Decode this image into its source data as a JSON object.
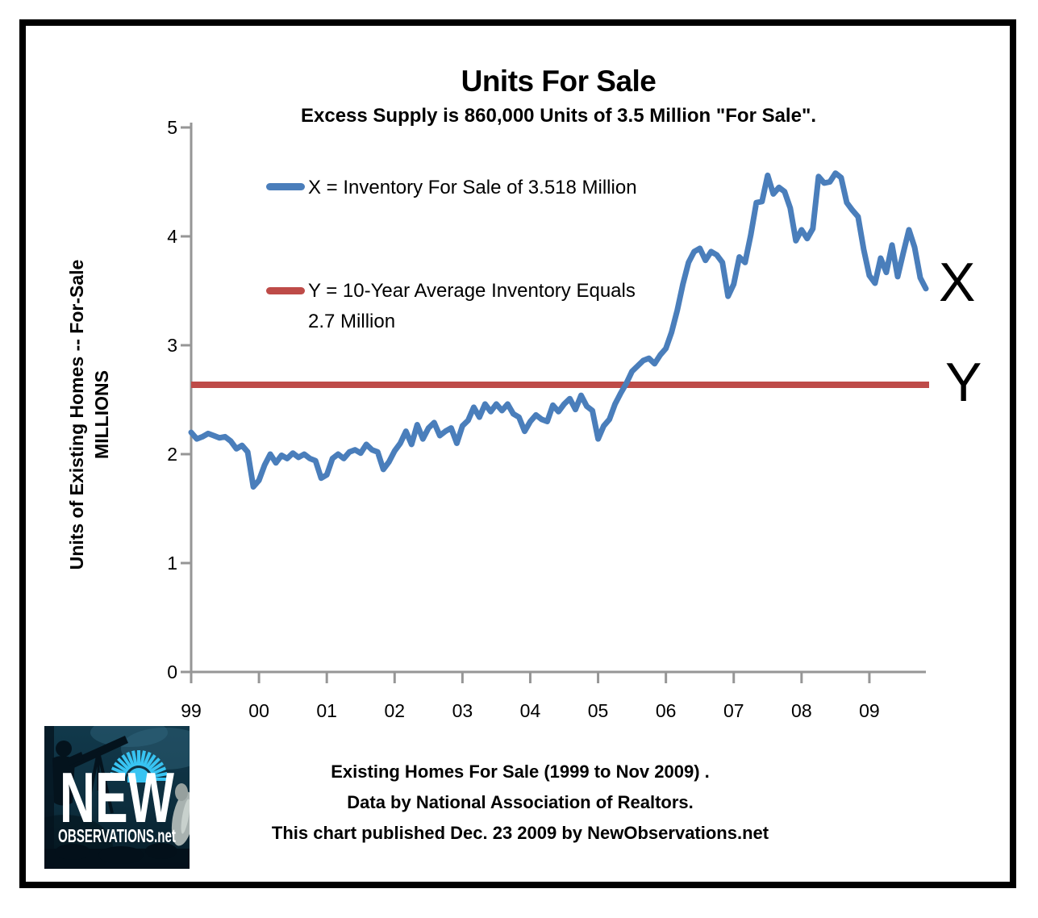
{
  "header": {
    "title": "Units For Sale",
    "subtitle": "Excess Supply is 860,000 Units of 3.5 Million \"For Sale\"."
  },
  "legend": {
    "series_x_label": "X = Inventory For Sale of 3.518 Million",
    "series_y_label_line1": "Y = 10-Year Average Inventory Equals",
    "series_y_label_line2": "2.7 Million"
  },
  "y_axis": {
    "label_line1": "Units of Existing Homes -- For-Sale",
    "label_line2": "MILLIONS"
  },
  "annotations": {
    "x_marker": "X",
    "y_marker": "Y"
  },
  "footer": {
    "line1": "Existing Homes For Sale (1999 to Nov 2009) .",
    "line2": "Data by National Association of Realtors.",
    "line3": "This chart published Dec. 23 2009 by NewObservations.net"
  },
  "logo": {
    "word1": "NEW",
    "word2": "OBSERVATIONS.net"
  },
  "colors": {
    "blue": "#4A7EBB",
    "red": "#BE4B48",
    "axis": "#969696",
    "border": "#000000"
  },
  "chart_data": {
    "type": "line",
    "title": "Units For Sale",
    "subtitle": "Excess Supply is 860,000 Units of 3.5 Million \"For Sale\".",
    "xlabel": "",
    "ylabel": "Units of Existing Homes -- For-Sale (MILLIONS)",
    "ylim": [
      0,
      5
    ],
    "y_ticks": [
      0,
      1,
      2,
      3,
      4,
      5
    ],
    "x_ticks": [
      "99",
      "00",
      "01",
      "02",
      "03",
      "04",
      "05",
      "06",
      "07",
      "08",
      "09"
    ],
    "x_start": "1999-01",
    "x_end": "2009-11",
    "frequency": "monthly",
    "grid": false,
    "legend_position": "inside-top-left",
    "series": [
      {
        "name": "X = Inventory For Sale of 3.518 Million",
        "color": "#4A7EBB",
        "values": [
          2.2,
          2.14,
          2.16,
          2.19,
          2.17,
          2.15,
          2.16,
          2.12,
          2.05,
          2.08,
          2.02,
          1.7,
          1.76,
          1.9,
          2.0,
          1.92,
          1.99,
          1.96,
          2.01,
          1.97,
          2.0,
          1.96,
          1.94,
          1.78,
          1.81,
          1.96,
          2.0,
          1.96,
          2.02,
          2.04,
          2.01,
          2.09,
          2.04,
          2.02,
          1.86,
          1.93,
          2.03,
          2.1,
          2.21,
          2.09,
          2.27,
          2.14,
          2.24,
          2.29,
          2.17,
          2.21,
          2.24,
          2.1,
          2.26,
          2.31,
          2.43,
          2.34,
          2.46,
          2.39,
          2.46,
          2.4,
          2.46,
          2.37,
          2.34,
          2.21,
          2.3,
          2.36,
          2.32,
          2.3,
          2.45,
          2.39,
          2.46,
          2.51,
          2.41,
          2.54,
          2.44,
          2.4,
          2.14,
          2.26,
          2.32,
          2.46,
          2.56,
          2.65,
          2.76,
          2.81,
          2.86,
          2.88,
          2.83,
          2.91,
          2.97,
          3.12,
          3.32,
          3.56,
          3.76,
          3.86,
          3.89,
          3.78,
          3.86,
          3.83,
          3.76,
          3.45,
          3.56,
          3.81,
          3.76,
          4.01,
          4.31,
          4.32,
          4.56,
          4.39,
          4.45,
          4.41,
          4.26,
          3.96,
          4.06,
          3.98,
          4.07,
          4.55,
          4.49,
          4.5,
          4.58,
          4.54,
          4.31,
          4.24,
          4.18,
          3.88,
          3.64,
          3.57,
          3.8,
          3.67,
          3.92,
          3.63,
          3.85,
          4.06,
          3.9,
          3.62,
          3.52
        ]
      },
      {
        "name": "Y = 10-Year Average Inventory Equals 2.7 Million",
        "color": "#BE4B48",
        "type": "constant",
        "value": 2.7
      }
    ]
  }
}
